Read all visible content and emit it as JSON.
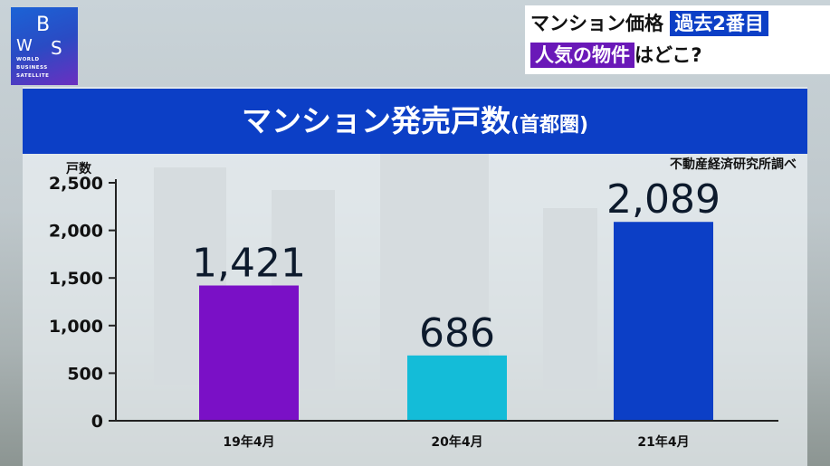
{
  "logo": {
    "mark": "WBS",
    "sub_lines": [
      "WORLD",
      "BUSINESS",
      "SATELLITE"
    ]
  },
  "ticker": {
    "line1_text": "マンション価格",
    "line1_tag": "過去2番目",
    "line2_tag": "人気の物件",
    "line2_text": "はどこ?",
    "tag1_color": "#0c3fc6",
    "tag2_color": "#6a18b8"
  },
  "banner": {
    "title": "マンション発売戸数",
    "paren": "(首都圏)"
  },
  "source": "不動産経済研究所調べ",
  "chart_data": {
    "type": "bar",
    "title": "マンション発売戸数(首都圏)",
    "ylabel": "戸数",
    "xlabel": "",
    "categories": [
      "19年4月",
      "20年4月",
      "21年4月"
    ],
    "values": [
      1421,
      686,
      2089
    ],
    "value_labels": [
      "1,421",
      "686",
      "2,089"
    ],
    "bar_colors": [
      "#7a10c6",
      "#14bcd8",
      "#0c3fc6"
    ],
    "ylim": [
      0,
      2500
    ],
    "yticks": [
      0,
      500,
      1000,
      1500,
      2000,
      2500
    ],
    "ytick_labels": [
      "0",
      "500",
      "1,000",
      "1,500",
      "2,000",
      "2,500"
    ],
    "grid": false,
    "legend": "none"
  }
}
